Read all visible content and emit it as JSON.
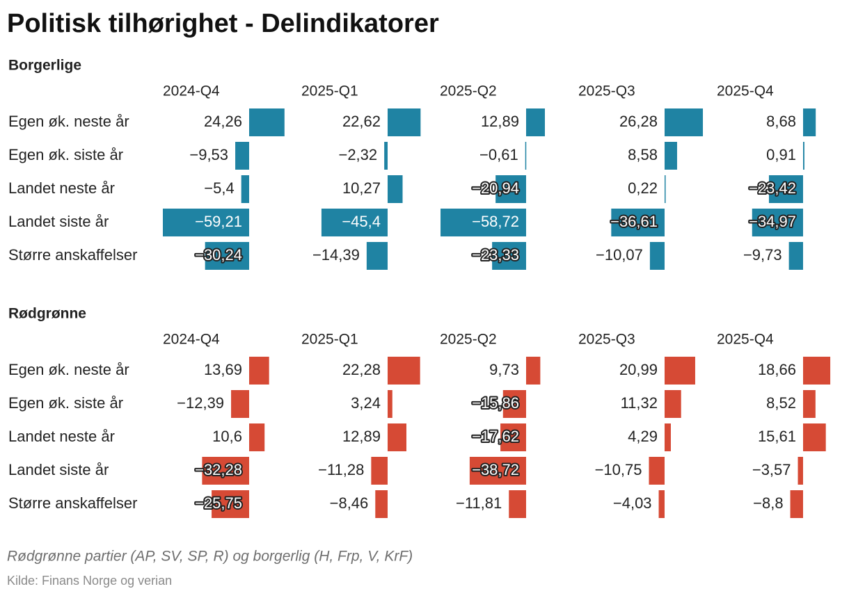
{
  "chart_data": {
    "type": "bar-table",
    "title": "Politisk tilhørighet - Delindikatorer",
    "note": "Rødgrønne partier (AP, SV, SP, R) og borgerlig (H, Frp, V, KrF)",
    "source": "Kilde: Finans Norge og verian",
    "groups": [
      {
        "name": "Borgerlige",
        "color": "#1f83a3",
        "categories": [
          "Egen øk. neste år",
          "Egen øk. siste år",
          "Landet neste år",
          "Landet siste år",
          "Større anskaffelser"
        ],
        "series": [
          {
            "name": "2024-Q4",
            "values": [
              24.26,
              -9.53,
              -5.4,
              -59.21,
              -30.24
            ],
            "value_labels": [
              "24,26",
              "−9,53",
              "−5,4",
              "−59,21",
              "−30,24"
            ]
          },
          {
            "name": "2025-Q1",
            "values": [
              22.62,
              -2.32,
              10.27,
              -45.4,
              -14.39
            ],
            "value_labels": [
              "22,62",
              "−2,32",
              "10,27",
              "−45,4",
              "−14,39"
            ]
          },
          {
            "name": "2025-Q2",
            "values": [
              12.89,
              -0.61,
              -20.94,
              -58.72,
              -23.33
            ],
            "value_labels": [
              "12,89",
              "−0,61",
              "−20,94",
              "−58,72",
              "−23,33"
            ]
          },
          {
            "name": "2025-Q3",
            "values": [
              26.28,
              8.58,
              0.22,
              -36.61,
              -10.07
            ],
            "value_labels": [
              "26,28",
              "8,58",
              "0,22",
              "−36,61",
              "−10,07"
            ]
          },
          {
            "name": "2025-Q4",
            "values": [
              8.68,
              0.91,
              -23.42,
              -34.97,
              -9.73
            ],
            "value_labels": [
              "8,68",
              "0,91",
              "−23,42",
              "−34,97",
              "−9,73"
            ]
          }
        ]
      },
      {
        "name": "Rødgrønne",
        "color": "#d64a35",
        "categories": [
          "Egen øk. neste år",
          "Egen øk. siste år",
          "Landet neste år",
          "Landet siste år",
          "Større anskaffelser"
        ],
        "series": [
          {
            "name": "2024-Q4",
            "values": [
              13.69,
              -12.39,
              10.6,
              -32.28,
              -25.75
            ],
            "value_labels": [
              "13,69",
              "−12,39",
              "10,6",
              "−32,28",
              "−25,75"
            ]
          },
          {
            "name": "2025-Q1",
            "values": [
              22.28,
              3.24,
              12.89,
              -11.28,
              -8.46
            ],
            "value_labels": [
              "22,28",
              "3,24",
              "12,89",
              "−11,28",
              "−8,46"
            ]
          },
          {
            "name": "2025-Q2",
            "values": [
              9.73,
              -15.86,
              -17.62,
              -38.72,
              -11.81
            ],
            "value_labels": [
              "9,73",
              "−15,86",
              "−17,62",
              "−38,72",
              "−11,81"
            ]
          },
          {
            "name": "2025-Q3",
            "values": [
              20.99,
              11.32,
              4.29,
              -10.75,
              -4.03
            ],
            "value_labels": [
              "20,99",
              "11,32",
              "4,29",
              "−10,75",
              "−4,03"
            ]
          },
          {
            "name": "2025-Q4",
            "values": [
              18.66,
              8.52,
              15.61,
              -3.57,
              -8.8
            ],
            "value_labels": [
              "18,66",
              "8,52",
              "15,61",
              "−3,57",
              "−8,8"
            ]
          }
        ]
      }
    ]
  }
}
